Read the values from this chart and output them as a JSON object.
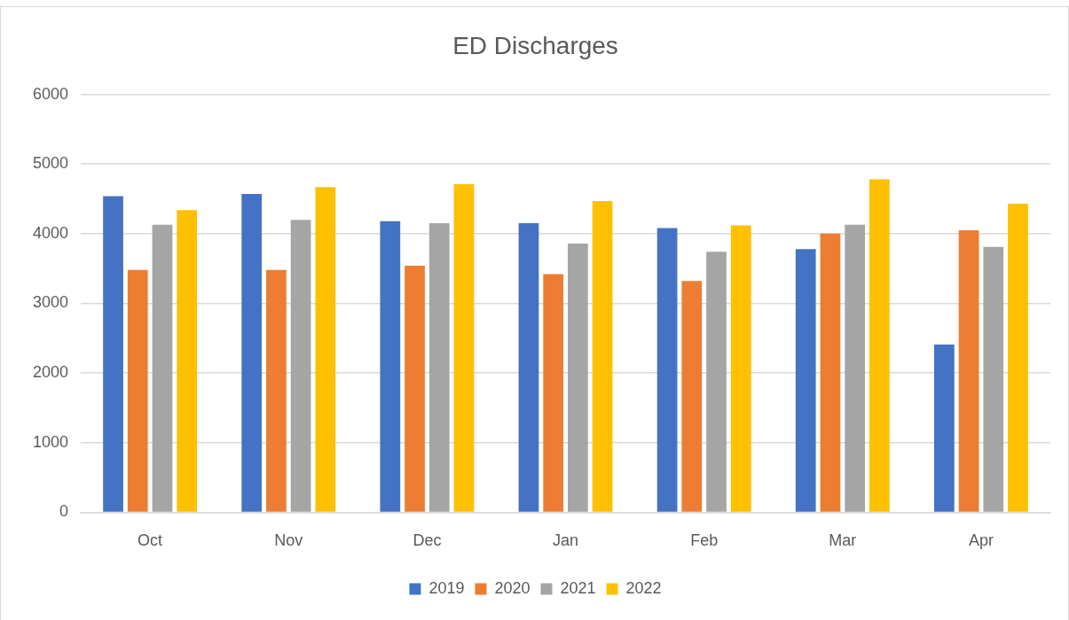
{
  "chart_data": {
    "type": "bar",
    "title": "ED Discharges",
    "categories": [
      "Oct",
      "Nov",
      "Dec",
      "Jan",
      "Feb",
      "Mar",
      "Apr"
    ],
    "series": [
      {
        "name": "2019",
        "color": "#4472c4",
        "values": [
          4540,
          4570,
          4180,
          4150,
          4080,
          3780,
          2410
        ]
      },
      {
        "name": "2020",
        "color": "#ed7d31",
        "values": [
          3480,
          3480,
          3540,
          3420,
          3320,
          4000,
          4050
        ]
      },
      {
        "name": "2021",
        "color": "#a5a5a5",
        "values": [
          4130,
          4200,
          4150,
          3860,
          3740,
          4130,
          3810
        ]
      },
      {
        "name": "2022",
        "color": "#ffc000",
        "values": [
          4340,
          4670,
          4710,
          4470,
          4120,
          4780,
          4430
        ]
      }
    ],
    "ylim": [
      0,
      6000
    ],
    "yticks": [
      0,
      1000,
      2000,
      3000,
      4000,
      5000,
      6000
    ],
    "grid": "y",
    "legend": "bottom"
  }
}
